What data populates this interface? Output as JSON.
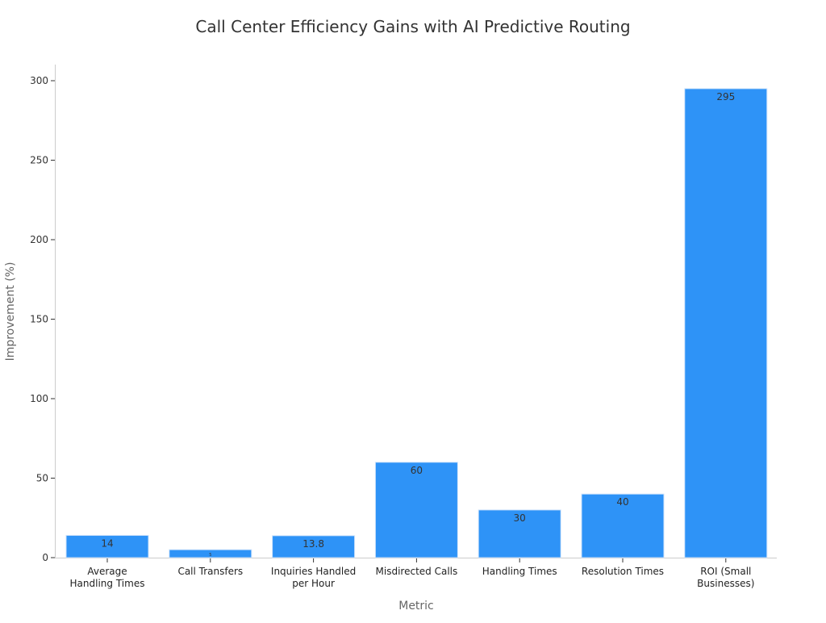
{
  "chart_data": {
    "type": "bar",
    "title": "Call Center Efficiency Gains with AI Predictive Routing",
    "xlabel": "Metric",
    "ylabel": "Improvement (%)",
    "categories": [
      "Average\nHandling Times",
      "Call Transfers",
      "Inquiries Handled\nper Hour",
      "Misdirected Calls",
      "Handling Times",
      "Resolution Times",
      "ROI (Small\nBusinesses)"
    ],
    "values": [
      14,
      5,
      13.8,
      60,
      30,
      40,
      295
    ],
    "data_labels": [
      "14",
      "5",
      "13.8",
      "60",
      "30",
      "40",
      "295"
    ],
    "ylim": [
      0,
      310
    ],
    "yticks": [
      0,
      50,
      100,
      150,
      200,
      250,
      300
    ],
    "grid": false,
    "bar_color": "#2e93f7"
  }
}
